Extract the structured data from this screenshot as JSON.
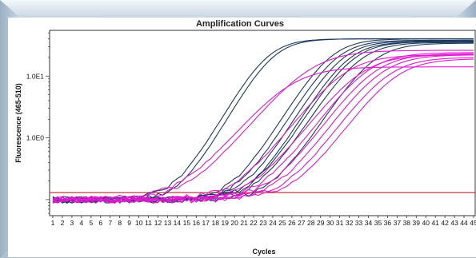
{
  "chart_data": {
    "type": "line",
    "title": "Amplification Curves",
    "xlabel": "Cycles",
    "ylabel": "Fluorescence (465-510)",
    "x_ticks": [
      "1",
      "2",
      "3",
      "4",
      "5",
      "6",
      "7",
      "8",
      "9",
      "10",
      "11",
      "12",
      "13",
      "14",
      "15",
      "16",
      "17",
      "18",
      "19",
      "20",
      "21",
      "22",
      "23",
      "24",
      "25",
      "26",
      "27",
      "28",
      "29",
      "30",
      "31",
      "32",
      "33",
      "34",
      "35",
      "36",
      "37",
      "38",
      "39",
      "40",
      "41",
      "42",
      "43",
      "44",
      "45"
    ],
    "y_tick_labels": [
      {
        "label": "1.0E1",
        "value": 10
      },
      {
        "label": "1.0E0",
        "value": 1
      }
    ],
    "y_scale": "log",
    "xlim": [
      1,
      45
    ],
    "ylim": [
      0.055,
      55
    ],
    "baseline": 0.1,
    "colors": {
      "dark_series": "#1e3a5f",
      "magenta_series": "#e01ad0",
      "threshold_line": "#c0393b",
      "bevel_light": "#e0eaf3",
      "bevel_dark": "#9eb3c6",
      "plot_bg": "#ffffff"
    },
    "threshold": 0.13,
    "series_groups": [
      {
        "color_key": "dark_series",
        "curves": [
          {
            "midpoint": 23.4,
            "plateau": 40,
            "slope": 1.6
          },
          {
            "midpoint": 24.0,
            "plateau": 40,
            "slope": 1.6
          },
          {
            "midpoint": 30.0,
            "plateau": 40,
            "slope": 1.7
          },
          {
            "midpoint": 30.6,
            "plateau": 38,
            "slope": 1.7
          },
          {
            "midpoint": 31.2,
            "plateau": 37,
            "slope": 1.7
          },
          {
            "midpoint": 31.8,
            "plateau": 36,
            "slope": 1.7
          },
          {
            "midpoint": 32.3,
            "plateau": 36,
            "slope": 1.75
          },
          {
            "midpoint": 33.0,
            "plateau": 35,
            "slope": 1.8
          },
          {
            "midpoint": 34.4,
            "plateau": 34,
            "slope": 1.8
          }
        ]
      },
      {
        "color_key": "magenta_series",
        "curves": [
          {
            "midpoint": 25.8,
            "plateau": 14,
            "slope": 2.3
          },
          {
            "midpoint": 28.0,
            "plateau": 26,
            "slope": 2.3
          },
          {
            "midpoint": 31.5,
            "plateau": 22,
            "slope": 2.1
          },
          {
            "midpoint": 33.2,
            "plateau": 22,
            "slope": 2.1
          },
          {
            "midpoint": 33.9,
            "plateau": 24,
            "slope": 2.0
          },
          {
            "midpoint": 34.6,
            "plateau": 23,
            "slope": 2.0
          },
          {
            "midpoint": 35.3,
            "plateau": 22,
            "slope": 2.0
          },
          {
            "midpoint": 36.0,
            "plateau": 20,
            "slope": 2.0
          },
          {
            "midpoint": 36.8,
            "plateau": 19,
            "slope": 2.0
          }
        ]
      }
    ],
    "grid": false,
    "legend": "none"
  }
}
